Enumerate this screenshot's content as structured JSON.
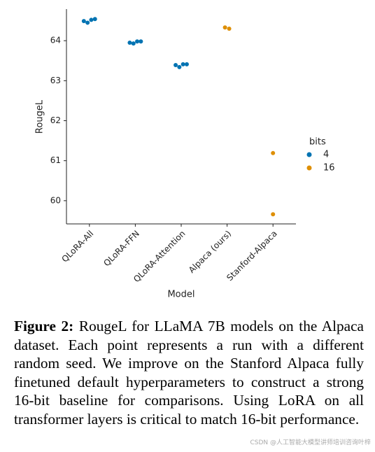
{
  "chart_data": {
    "type": "scatter",
    "x_label": "Model",
    "y_label": "RougeL",
    "categories": [
      "QLoRA-All",
      "QLoRA-FFN",
      "QLoRA-Attention",
      "Alpaca (ours)",
      "Stanford-Alpaca"
    ],
    "series": [
      {
        "name": "4",
        "color": "#0173b2",
        "x": [
          "QLoRA-All",
          "QLoRA-All",
          "QLoRA-All",
          "QLoRA-All",
          "QLoRA-FFN",
          "QLoRA-FFN",
          "QLoRA-FFN",
          "QLoRA-FFN",
          "QLoRA-Attention",
          "QLoRA-Attention",
          "QLoRA-Attention",
          "QLoRA-Attention"
        ],
        "values": [
          64.49,
          64.45,
          64.52,
          64.54,
          63.95,
          63.93,
          63.98,
          63.98,
          63.39,
          63.34,
          63.41,
          63.41
        ]
      },
      {
        "name": "16",
        "color": "#de8f05",
        "x": [
          "Alpaca (ours)",
          "Alpaca (ours)",
          "Stanford-Alpaca",
          "Stanford-Alpaca"
        ],
        "values": [
          64.33,
          64.3,
          61.19,
          59.66
        ]
      }
    ],
    "legend_title": "bits",
    "legend": "right",
    "ylim": [
      59.42,
      64.79
    ],
    "yticks": [
      60,
      61,
      62,
      63,
      64
    ]
  },
  "caption": {
    "label": "Figure 2:",
    "text": "RougeL for LLaMA 7B models on the Alpaca dataset. Each point represents a run with a different random seed. We improve on the Stanford Alpaca fully finetuned default hyperparameters to construct a strong 16-bit baseline for comparisons. Using LoRA on all transformer layers is critical to match 16-bit performance."
  },
  "watermark": "CSDN @人工智能大模型讲师培训咨询叶梓"
}
